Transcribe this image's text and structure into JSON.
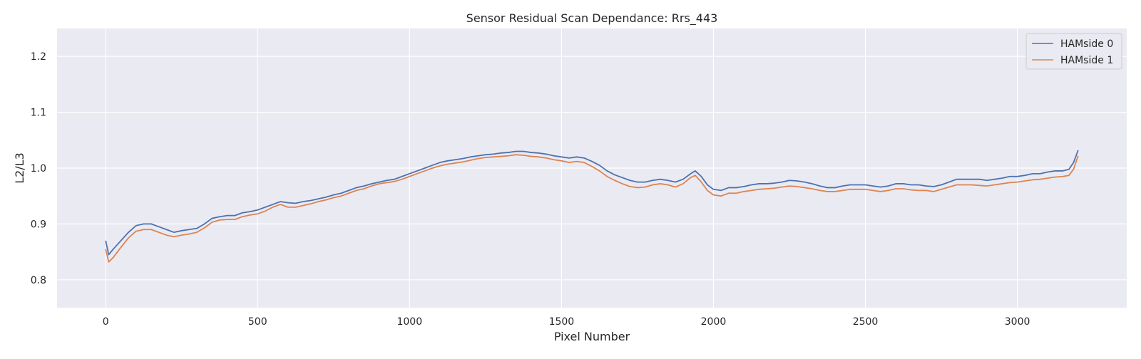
{
  "chart_data": {
    "type": "line",
    "title": "Sensor Residual Scan Dependance: Rrs_443",
    "xlabel": "Pixel Number",
    "ylabel": "L2/L3",
    "xlim": [
      -160,
      3360
    ],
    "ylim": [
      0.75,
      1.25
    ],
    "xticks": [
      0,
      500,
      1000,
      1500,
      2000,
      2500,
      3000
    ],
    "yticks": [
      0.8,
      0.9,
      1.0,
      1.1,
      1.2
    ],
    "xtick_labels": [
      "0",
      "500",
      "1000",
      "1500",
      "2000",
      "2500",
      "3000"
    ],
    "ytick_labels": [
      "0.8",
      "0.9",
      "1.0",
      "1.1",
      "1.2"
    ],
    "grid": true,
    "legend_position": "top-right",
    "background": "#eaeaf2",
    "series": [
      {
        "name": "HAMside 0",
        "color": "#4c72b0",
        "x": [
          0,
          10,
          25,
          50,
          75,
          100,
          125,
          150,
          175,
          200,
          225,
          250,
          275,
          300,
          325,
          350,
          375,
          400,
          425,
          450,
          475,
          500,
          525,
          550,
          575,
          600,
          625,
          650,
          675,
          700,
          725,
          750,
          775,
          800,
          825,
          850,
          875,
          900,
          925,
          950,
          975,
          1000,
          1025,
          1050,
          1075,
          1100,
          1125,
          1150,
          1175,
          1200,
          1225,
          1250,
          1275,
          1300,
          1325,
          1350,
          1375,
          1400,
          1425,
          1450,
          1475,
          1500,
          1525,
          1550,
          1575,
          1600,
          1625,
          1650,
          1675,
          1700,
          1725,
          1750,
          1775,
          1800,
          1825,
          1850,
          1875,
          1900,
          1925,
          1940,
          1960,
          1980,
          2000,
          2025,
          2050,
          2075,
          2100,
          2125,
          2150,
          2175,
          2200,
          2225,
          2250,
          2275,
          2300,
          2325,
          2350,
          2375,
          2400,
          2425,
          2450,
          2475,
          2500,
          2525,
          2550,
          2575,
          2600,
          2625,
          2650,
          2675,
          2700,
          2725,
          2750,
          2775,
          2800,
          2825,
          2850,
          2875,
          2900,
          2925,
          2950,
          2975,
          3000,
          3025,
          3050,
          3075,
          3100,
          3125,
          3150,
          3170,
          3185,
          3200
        ],
        "y": [
          0.87,
          0.845,
          0.855,
          0.87,
          0.885,
          0.897,
          0.9,
          0.9,
          0.895,
          0.89,
          0.885,
          0.888,
          0.89,
          0.892,
          0.9,
          0.91,
          0.913,
          0.915,
          0.915,
          0.92,
          0.922,
          0.925,
          0.93,
          0.935,
          0.94,
          0.938,
          0.937,
          0.94,
          0.942,
          0.945,
          0.948,
          0.952,
          0.955,
          0.96,
          0.965,
          0.968,
          0.972,
          0.975,
          0.978,
          0.98,
          0.985,
          0.99,
          0.995,
          1.0,
          1.005,
          1.01,
          1.013,
          1.015,
          1.017,
          1.02,
          1.022,
          1.024,
          1.025,
          1.027,
          1.028,
          1.03,
          1.03,
          1.028,
          1.027,
          1.025,
          1.022,
          1.02,
          1.018,
          1.02,
          1.018,
          1.012,
          1.005,
          0.995,
          0.988,
          0.983,
          0.978,
          0.975,
          0.975,
          0.978,
          0.98,
          0.978,
          0.975,
          0.98,
          0.99,
          0.995,
          0.985,
          0.97,
          0.962,
          0.96,
          0.965,
          0.965,
          0.967,
          0.97,
          0.972,
          0.972,
          0.973,
          0.975,
          0.978,
          0.977,
          0.975,
          0.972,
          0.968,
          0.965,
          0.965,
          0.968,
          0.97,
          0.97,
          0.97,
          0.968,
          0.966,
          0.968,
          0.972,
          0.972,
          0.97,
          0.97,
          0.968,
          0.967,
          0.97,
          0.975,
          0.98,
          0.98,
          0.98,
          0.98,
          0.978,
          0.98,
          0.982,
          0.985,
          0.985,
          0.987,
          0.99,
          0.99,
          0.993,
          0.995,
          0.995,
          0.998,
          1.01,
          1.032
        ]
      },
      {
        "name": "HAMside 1",
        "color": "#dd8452",
        "x": [
          0,
          10,
          25,
          50,
          75,
          100,
          125,
          150,
          175,
          200,
          225,
          250,
          275,
          300,
          325,
          350,
          375,
          400,
          425,
          450,
          475,
          500,
          525,
          550,
          575,
          600,
          625,
          650,
          675,
          700,
          725,
          750,
          775,
          800,
          825,
          850,
          875,
          900,
          925,
          950,
          975,
          1000,
          1025,
          1050,
          1075,
          1100,
          1125,
          1150,
          1175,
          1200,
          1225,
          1250,
          1275,
          1300,
          1325,
          1350,
          1375,
          1400,
          1425,
          1450,
          1475,
          1500,
          1525,
          1550,
          1575,
          1600,
          1625,
          1650,
          1675,
          1700,
          1725,
          1750,
          1775,
          1800,
          1825,
          1850,
          1875,
          1900,
          1925,
          1940,
          1960,
          1980,
          2000,
          2025,
          2050,
          2075,
          2100,
          2125,
          2150,
          2175,
          2200,
          2225,
          2250,
          2275,
          2300,
          2325,
          2350,
          2375,
          2400,
          2425,
          2450,
          2475,
          2500,
          2525,
          2550,
          2575,
          2600,
          2625,
          2650,
          2675,
          2700,
          2725,
          2750,
          2775,
          2800,
          2825,
          2850,
          2875,
          2900,
          2925,
          2950,
          2975,
          3000,
          3025,
          3050,
          3075,
          3100,
          3125,
          3150,
          3170,
          3185,
          3200
        ],
        "y": [
          0.855,
          0.832,
          0.84,
          0.858,
          0.875,
          0.887,
          0.89,
          0.89,
          0.885,
          0.88,
          0.877,
          0.88,
          0.882,
          0.885,
          0.893,
          0.903,
          0.907,
          0.908,
          0.908,
          0.913,
          0.916,
          0.918,
          0.923,
          0.93,
          0.935,
          0.93,
          0.93,
          0.933,
          0.936,
          0.94,
          0.943,
          0.947,
          0.95,
          0.955,
          0.96,
          0.963,
          0.968,
          0.972,
          0.974,
          0.976,
          0.98,
          0.985,
          0.99,
          0.995,
          1.0,
          1.004,
          1.007,
          1.009,
          1.011,
          1.014,
          1.017,
          1.019,
          1.02,
          1.021,
          1.022,
          1.024,
          1.023,
          1.021,
          1.02,
          1.018,
          1.015,
          1.013,
          1.01,
          1.012,
          1.01,
          1.003,
          0.995,
          0.985,
          0.978,
          0.972,
          0.967,
          0.965,
          0.966,
          0.97,
          0.972,
          0.97,
          0.966,
          0.972,
          0.983,
          0.987,
          0.975,
          0.96,
          0.952,
          0.95,
          0.955,
          0.955,
          0.958,
          0.96,
          0.962,
          0.963,
          0.964,
          0.966,
          0.968,
          0.967,
          0.965,
          0.963,
          0.96,
          0.958,
          0.958,
          0.96,
          0.962,
          0.962,
          0.962,
          0.96,
          0.958,
          0.96,
          0.963,
          0.963,
          0.961,
          0.96,
          0.96,
          0.958,
          0.962,
          0.966,
          0.97,
          0.97,
          0.97,
          0.969,
          0.968,
          0.97,
          0.972,
          0.974,
          0.975,
          0.977,
          0.979,
          0.98,
          0.982,
          0.984,
          0.985,
          0.987,
          0.998,
          1.022
        ]
      }
    ]
  }
}
